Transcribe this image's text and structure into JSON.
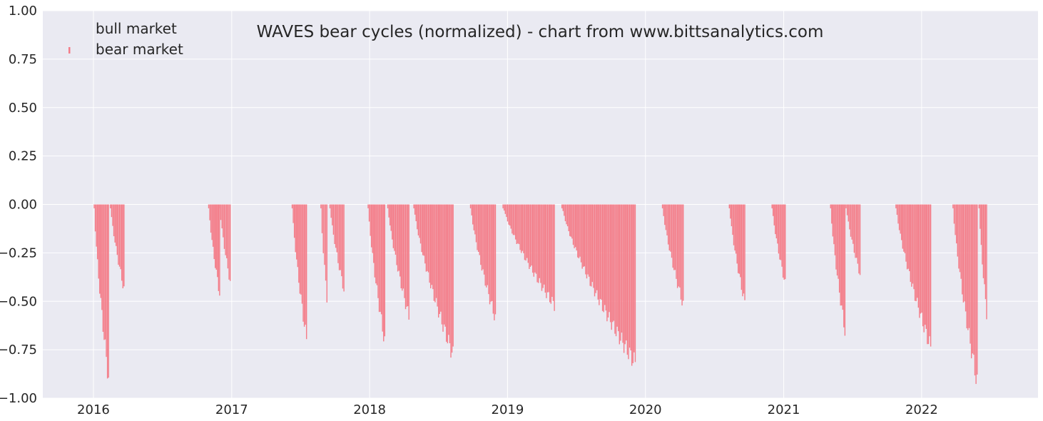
{
  "chart_data": {
    "type": "bar",
    "title": "WAVES bear cycles (normalized)  - chart from www.bittsanalytics.com",
    "xlabel": "",
    "ylabel": "",
    "xlim": [
      "2015-08-20",
      "2022-11-05"
    ],
    "ylim": [
      -1.0,
      1.0
    ],
    "x_ticks": [
      "2016",
      "2017",
      "2018",
      "2019",
      "2020",
      "2021",
      "2022"
    ],
    "y_ticks": [
      "1.00",
      "0.75",
      "0.50",
      "0.25",
      "0.00",
      "−0.25",
      "−0.50",
      "−0.75",
      "−1.00"
    ],
    "grid": true,
    "legend_position": "top-left",
    "colors": {
      "background": "#eaeaf2",
      "grid": "#ffffff",
      "bear": "#f47c88",
      "bull": "#eaeaf2"
    },
    "series": [
      {
        "name": "bull market",
        "values": []
      },
      {
        "name": "bear market",
        "episodes": [
          {
            "start": "2016-01-03",
            "end": "2016-02-10",
            "bottom": -0.9
          },
          {
            "start": "2016-02-15",
            "end": "2016-03-22",
            "bottom": -0.44
          },
          {
            "start": "2016-11-01",
            "end": "2016-11-30",
            "bottom": -0.46
          },
          {
            "start": "2016-11-30",
            "end": "2016-12-28",
            "bottom": -0.4
          },
          {
            "start": "2017-06-10",
            "end": "2017-07-18",
            "bottom": -0.7
          },
          {
            "start": "2017-08-25",
            "end": "2017-09-10",
            "bottom": -0.48
          },
          {
            "start": "2017-09-18",
            "end": "2017-10-25",
            "bottom": -0.44
          },
          {
            "start": "2017-12-28",
            "end": "2018-02-10",
            "bottom": -0.71
          },
          {
            "start": "2018-02-18",
            "end": "2018-04-15",
            "bottom": -0.58
          },
          {
            "start": "2018-04-28",
            "end": "2018-08-10",
            "bottom": -0.78
          },
          {
            "start": "2018-09-25",
            "end": "2018-11-30",
            "bottom": -0.59
          },
          {
            "start": "2018-12-20",
            "end": "2019-05-05",
            "bottom": -0.52
          },
          {
            "start": "2019-05-25",
            "end": "2019-12-05",
            "bottom": -0.82
          },
          {
            "start": "2020-02-15",
            "end": "2020-04-10",
            "bottom": -0.52
          },
          {
            "start": "2020-08-10",
            "end": "2020-09-20",
            "bottom": -0.51
          },
          {
            "start": "2020-12-01",
            "end": "2021-01-05",
            "bottom": -0.41
          },
          {
            "start": "2021-05-05",
            "end": "2021-06-12",
            "bottom": -0.65
          },
          {
            "start": "2021-06-15",
            "end": "2021-07-22",
            "bottom": -0.36
          },
          {
            "start": "2021-10-25",
            "end": "2022-01-25",
            "bottom": -0.74
          },
          {
            "start": "2022-03-25",
            "end": "2022-05-28",
            "bottom": -0.92
          },
          {
            "start": "2022-06-02",
            "end": "2022-06-22",
            "bottom": -0.56
          }
        ]
      }
    ]
  }
}
